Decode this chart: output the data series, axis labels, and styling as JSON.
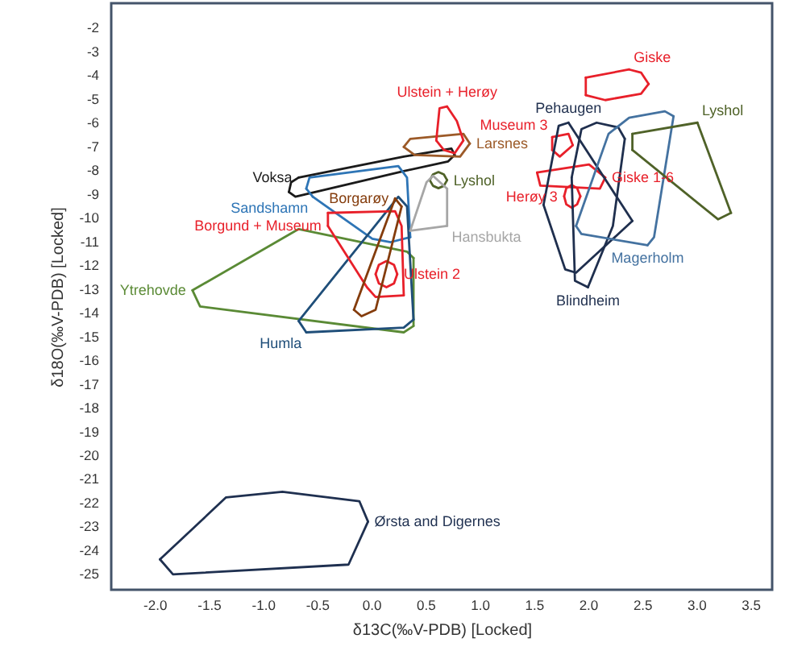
{
  "chart_data": {
    "type": "line",
    "xlabel": "δ13C(‰V-PDB) [Locked]",
    "ylabel": "δ18O(‰V-PDB) [Locked]",
    "xlim": [
      -2.4,
      3.7
    ],
    "ylim": [
      -25.7,
      -1
    ],
    "xticks": [
      {
        "value": -2,
        "label": "-2.0"
      },
      -1.5,
      {
        "value": -1,
        "label": "-1.0"
      },
      -0.5,
      {
        "value": 0,
        "label": "0.0"
      },
      0.5,
      {
        "value": 1,
        "label": "1.0"
      },
      1.5,
      {
        "value": 2,
        "label": "2.0"
      },
      2.5,
      {
        "value": 3,
        "label": "3.0"
      },
      3.5
    ],
    "yticks": [
      -2,
      -3,
      -4,
      -5,
      -6,
      -7,
      -8,
      -9,
      -10,
      -11,
      -12,
      -13,
      -14,
      -15,
      -16,
      -17,
      -18,
      -19,
      -20,
      -21,
      -22,
      -23,
      -24,
      -25
    ],
    "series": [
      {
        "name": "Voksa",
        "color": "#1a1a1a",
        "x": [
          -0.67,
          0.3,
          0.74,
          0.77
        ],
        "values": [
          -8.34,
          -7.46,
          -7.12,
          -7.39
        ]
      },
      {
        "color": "#1a1a1a",
        "x": [
          0.77,
          0.71,
          0.3,
          -0.7,
          -0.76
        ],
        "values": [
          -7.39,
          -7.66,
          -8.07,
          -9.15,
          -8.95
        ]
      },
      {
        "color": "#1a1a1a",
        "x": [
          -0.76,
          -0.74,
          -0.67
        ],
        "values": [
          -8.95,
          -8.54,
          -8.34
        ]
      },
      {
        "name": "Sandshamn",
        "color": "#2e75b6",
        "x": [
          -0.54,
          -0.6
        ],
        "values": [
          -9.15,
          -8.81
        ]
      },
      {
        "color": "#2e75b6",
        "x": [
          -0.6,
          -0.57,
          0.25,
          0.33,
          0.36
        ],
        "values": [
          -8.81,
          -8.34,
          -7.86,
          -8.34,
          -10.85
        ]
      },
      {
        "color": "#2e75b6",
        "x": [
          0.36,
          0.18,
          0.01,
          -0.54
        ],
        "values": [
          -10.85,
          -11.06,
          -10.92,
          -9.15
        ]
      },
      {
        "name": "Ytrehovde",
        "color": "#5a8a35",
        "x": [
          -1.65,
          -1.58,
          0.3,
          0.39
        ],
        "values": [
          -13.09,
          -13.77,
          -14.86,
          -14.59
        ]
      },
      {
        "color": "#5a8a35",
        "x": [
          0.39,
          0.39
        ],
        "values": [
          -14.59,
          -11.73
        ]
      },
      {
        "color": "#5a8a35",
        "x": [
          0.39,
          0.33,
          -0.67,
          -1.65
        ],
        "values": [
          -11.73,
          -11.46,
          -10.51,
          -13.09
        ]
      },
      {
        "name": "Humla",
        "color": "#1f4e79",
        "x": [
          -0.6,
          -0.67
        ],
        "values": [
          -14.86,
          -14.38
        ]
      },
      {
        "color": "#1f4e79",
        "x": [
          -0.67,
          0.25,
          0.33,
          0.39
        ],
        "values": [
          -14.38,
          -9.15,
          -9.56,
          -14.32
        ]
      },
      {
        "color": "#1f4e79",
        "x": [
          0.39,
          0.3,
          -0.6
        ],
        "values": [
          -14.32,
          -14.66,
          -14.86
        ]
      },
      {
        "name": "Borgund + Museum",
        "color": "#e8202a",
        "x": [
          -0.4,
          -0.4
        ],
        "values": [
          -10.38,
          -9.83
        ]
      },
      {
        "color": "#e8202a",
        "x": [
          -0.4,
          0.22,
          0.28,
          0.3
        ],
        "values": [
          -9.83,
          -9.76,
          -10.38,
          -13.3
        ]
      },
      {
        "color": "#e8202a",
        "x": [
          0.3,
          0.04,
          -0.04,
          -0.4
        ],
        "values": [
          -13.3,
          -13.37,
          -12.96,
          -10.38
        ]
      },
      {
        "name": "Ulstein 2",
        "color": "#e8202a",
        "x": [
          0.24,
          0.21,
          0.14,
          0.07,
          0.04
        ],
        "values": [
          -12.41,
          -12.02,
          -11.86,
          -12.02,
          -12.41
        ]
      },
      {
        "color": "#e8202a",
        "x": [
          0.04,
          0.07,
          0.14,
          0.21,
          0.24
        ],
        "values": [
          -12.41,
          -12.8,
          -12.96,
          -12.8,
          -12.41
        ]
      },
      {
        "name": "Borgarøy",
        "color": "#843c0c",
        "x": [
          0.22,
          0.28
        ],
        "values": [
          -9.22,
          -9.56
        ]
      },
      {
        "color": "#843c0c",
        "x": [
          0.28,
          0.04,
          -0.09,
          -0.16
        ],
        "values": [
          -9.56,
          -13.91,
          -14.18,
          -13.91
        ]
      },
      {
        "color": "#843c0c",
        "x": [
          -0.16,
          0.22
        ],
        "values": [
          -13.91,
          -9.22
        ]
      },
      {
        "name": "Lyshol",
        "color": "#4f6228",
        "x": [
          0.7,
          0.67,
          0.62,
          0.57,
          0.54
        ],
        "values": [
          -8.45,
          -8.21,
          -8.11,
          -8.21,
          -8.45
        ]
      },
      {
        "color": "#4f6228",
        "x": [
          0.54,
          0.57,
          0.62,
          0.67,
          0.7
        ],
        "values": [
          -8.45,
          -8.69,
          -8.79,
          -8.69,
          -8.45
        ]
      },
      {
        "name": "Hansbukta",
        "color": "#a6a6a6",
        "x": [
          0.7,
          0.36
        ],
        "values": [
          -10.38,
          -10.58
        ]
      },
      {
        "color": "#a6a6a6",
        "x": [
          0.36,
          0.51,
          0.57,
          0.7
        ],
        "values": [
          -10.58,
          -8.54,
          -8.27,
          -8.81
        ]
      },
      {
        "color": "#a6a6a6",
        "x": [
          0.7,
          0.7
        ],
        "values": [
          -8.81,
          -10.38
        ]
      },
      {
        "name": "Larsnes",
        "color": "#9c5a28",
        "x": [
          0.91,
          0.82,
          0.4,
          0.3
        ],
        "values": [
          -6.91,
          -7.46,
          -7.39,
          -7.05
        ]
      },
      {
        "color": "#9c5a28",
        "x": [
          0.3,
          0.36,
          0.85,
          0.91
        ],
        "values": [
          -7.05,
          -6.71,
          -6.5,
          -6.91
        ]
      },
      {
        "name": "Ulstein + Herøy",
        "color": "#e8202a",
        "x": [
          0.7,
          0.79,
          0.85
        ],
        "values": [
          -5.35,
          -5.96,
          -6.78
        ]
      },
      {
        "color": "#e8202a",
        "x": [
          0.85,
          0.77,
          0.67,
          0.6
        ],
        "values": [
          -6.78,
          -7.32,
          -7.18,
          -6.78
        ]
      },
      {
        "color": "#e8202a",
        "x": [
          0.6,
          0.63,
          0.7
        ],
        "values": [
          -6.78,
          -5.42,
          -5.35
        ]
      },
      {
        "name": "Museum 3",
        "color": "#e8202a",
        "x": [
          1.67,
          1.82,
          1.86
        ],
        "values": [
          -6.64,
          -6.5,
          -6.98
        ]
      },
      {
        "color": "#e8202a",
        "x": [
          1.86,
          1.74,
          1.67
        ],
        "values": [
          -6.98,
          -7.46,
          -7.18
        ]
      },
      {
        "color": "#e8202a",
        "x": [
          1.67,
          1.67
        ],
        "values": [
          -7.18,
          -6.64
        ]
      },
      {
        "name": "Giske",
        "color": "#e8202a",
        "x": [
          2.38,
          2.49,
          2.56
        ],
        "values": [
          -3.79,
          -3.92,
          -4.4
        ]
      },
      {
        "color": "#e8202a",
        "x": [
          2.56,
          2.49,
          2.16,
          1.98
        ],
        "values": [
          -4.4,
          -4.81,
          -5.08,
          -4.87
        ]
      },
      {
        "color": "#e8202a",
        "x": [
          1.98,
          1.98
        ],
        "values": [
          -4.87,
          -4.13
        ]
      },
      {
        "color": "#e8202a",
        "x": [
          1.98,
          2.38
        ],
        "values": [
          -4.13,
          -3.79
        ]
      },
      {
        "name": "Giske 1-6",
        "color": "#e8202a",
        "x": [
          2.16,
          2.11,
          1.56,
          1.53
        ],
        "values": [
          -8.34,
          -8.81,
          -8.68,
          -8.13
        ]
      },
      {
        "color": "#e8202a",
        "x": [
          1.53,
          2.01,
          2.16
        ],
        "values": [
          -8.13,
          -7.79,
          -8.34
        ]
      },
      {
        "name": "Herøy 3",
        "color": "#e8202a",
        "x": [
          1.78,
          1.8,
          1.85,
          1.9,
          1.93
        ],
        "values": [
          -9.13,
          -8.79,
          -8.65,
          -8.79,
          -9.13
        ]
      },
      {
        "color": "#e8202a",
        "x": [
          1.93,
          1.9,
          1.85,
          1.8,
          1.78
        ],
        "values": [
          -9.13,
          -9.47,
          -9.61,
          -9.47,
          -9.13
        ]
      },
      {
        "name": "Pehaugen",
        "color": "#1f2f4e",
        "x": [
          1.82,
          2.41
        ],
        "values": [
          -6.03,
          -10.17
        ]
      },
      {
        "color": "#1f2f4e",
        "x": [
          2.41,
          1.89,
          1.79,
          1.59
        ],
        "values": [
          -10.17,
          -12.35,
          -12.21,
          -9.49
        ]
      },
      {
        "color": "#1f2f4e",
        "x": [
          1.59,
          1.73,
          1.82
        ],
        "values": [
          -9.49,
          -6.16,
          -6.03
        ]
      },
      {
        "name": "Blindheim",
        "color": "#1f2f4e",
        "x": [
          2.0,
          1.88,
          1.85
        ],
        "values": [
          -12.96,
          -12.69,
          -8.34
        ]
      },
      {
        "color": "#1f2f4e",
        "x": [
          1.85,
          1.94,
          2.08,
          2.28,
          2.34
        ],
        "values": [
          -8.34,
          -6.3,
          -6.03,
          -6.23,
          -6.71
        ]
      },
      {
        "color": "#1f2f4e",
        "x": [
          2.34,
          2.23,
          2.0
        ],
        "values": [
          -6.71,
          -10.38,
          -12.96
        ]
      },
      {
        "name": "Magerholm",
        "color": "#4472a0",
        "x": [
          2.55,
          1.94,
          1.89
        ],
        "values": [
          -11.19,
          -10.72,
          -10.38
        ]
      },
      {
        "color": "#4472a0",
        "x": [
          1.89,
          2.19,
          2.38,
          2.71,
          2.79
        ],
        "values": [
          -10.38,
          -6.5,
          -5.82,
          -5.55,
          -5.76
        ]
      },
      {
        "color": "#4472a0",
        "x": [
          2.79,
          2.61,
          2.55
        ],
        "values": [
          -5.76,
          -10.85,
          -11.19
        ]
      },
      {
        "name": "Lyshol",
        "color": "#4f6228",
        "x": [
          3.01,
          3.32
        ],
        "values": [
          -6.03,
          -9.83
        ]
      },
      {
        "color": "#4f6228",
        "x": [
          3.32,
          3.2,
          2.41
        ],
        "values": [
          -9.83,
          -10.1,
          -7.18
        ]
      },
      {
        "color": "#4f6228",
        "x": [
          2.41,
          2.41
        ],
        "values": [
          -7.18,
          -6.5
        ]
      },
      {
        "color": "#4f6228",
        "x": [
          2.41,
          3.01
        ],
        "values": [
          -6.5,
          -6.03
        ]
      },
      {
        "name": "Ørsta and Digernes",
        "color": "#1f3050",
        "x": [
          -0.03,
          -0.21,
          -1.83,
          -1.95
        ],
        "values": [
          -22.83,
          -24.64,
          -25.05,
          -24.42
        ]
      },
      {
        "color": "#1f3050",
        "x": [
          -1.95,
          -1.34,
          -0.82,
          -0.11,
          -0.03
        ],
        "values": [
          -24.42,
          -21.81,
          -21.57,
          -21.97,
          -22.83
        ]
      }
    ]
  }
}
